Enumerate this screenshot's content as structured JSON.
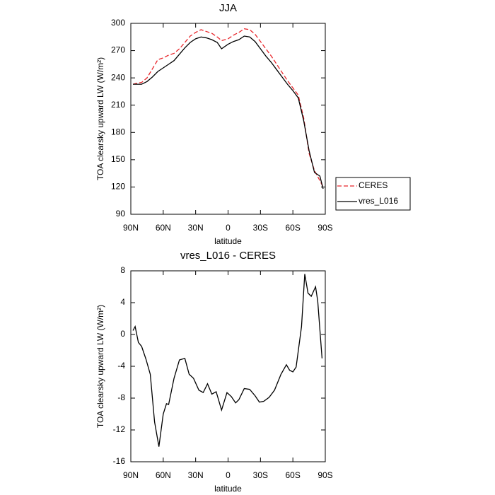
{
  "chart_data": [
    {
      "type": "line",
      "title": "JJA",
      "xlabel": "latitude",
      "ylabel": "TOA clearsky upward LW (W/m²)",
      "x": [
        88,
        85,
        80,
        75,
        70,
        65,
        60,
        55,
        50,
        45,
        40,
        35,
        30,
        25,
        20,
        15,
        10,
        6,
        0,
        -5,
        -10,
        -15,
        -20,
        -25,
        -30,
        -35,
        -40,
        -45,
        -50,
        -55,
        -60,
        -65,
        -70,
        -75,
        -80,
        -85,
        -88
      ],
      "series": [
        {
          "name": "CERES",
          "color": "#e8262b",
          "dashed": true,
          "values": [
            233,
            234,
            235,
            240,
            250,
            260,
            262,
            265,
            267,
            272,
            279,
            286,
            290,
            293,
            291,
            289,
            285,
            281,
            283,
            287,
            290,
            294,
            293,
            288,
            280,
            272,
            264,
            255,
            246,
            237,
            229,
            221,
            196,
            157,
            138,
            127,
            120
          ]
        },
        {
          "name": "vres_L016",
          "color": "#000000",
          "dashed": false,
          "values": [
            233,
            233,
            233,
            236,
            241,
            247,
            251,
            255,
            259,
            266,
            273,
            279,
            283,
            285,
            284,
            282,
            279,
            272,
            277,
            280,
            282,
            286,
            285,
            280,
            272,
            264,
            257,
            249,
            241,
            233,
            226,
            218,
            193,
            160,
            136,
            132,
            118
          ]
        }
      ],
      "xlim": [
        90,
        -90
      ],
      "xticks": [
        {
          "value": 90,
          "label": "90N"
        },
        {
          "value": 60,
          "label": "60N"
        },
        {
          "value": 30,
          "label": "30N"
        },
        0,
        {
          "value": -30,
          "label": "30S"
        },
        {
          "value": -60,
          "label": "60S"
        },
        {
          "value": -90,
          "label": "90S"
        }
      ],
      "ylim": [
        90,
        300
      ],
      "yticks": [
        90,
        120,
        150,
        180,
        210,
        240,
        270,
        300
      ],
      "legend": "right"
    },
    {
      "type": "line",
      "title": "vres_L016 - CERES",
      "xlabel": "latitude",
      "ylabel": "TOA clearsky upward LW (W/m²)",
      "x": [
        88,
        86,
        83,
        80,
        76,
        72,
        68,
        64,
        60,
        57,
        55,
        50,
        45,
        40,
        36,
        32,
        27,
        23,
        19,
        15,
        11,
        6,
        1,
        -3,
        -7,
        -10,
        -15,
        -20,
        -25,
        -29,
        -33,
        -38,
        -43,
        -49,
        -54,
        -57,
        -60,
        -63,
        -68,
        -71,
        -74,
        -77,
        -81,
        -83,
        -87
      ],
      "series": [
        {
          "name": "vres_L016 - CERES",
          "color": "#000000",
          "dashed": false,
          "values": [
            0.5,
            1.0,
            -1.0,
            -1.5,
            -3.1,
            -5.0,
            -11.0,
            -14.1,
            -10.0,
            -8.7,
            -8.8,
            -5.5,
            -3.2,
            -3.0,
            -5.0,
            -5.5,
            -7.0,
            -7.3,
            -6.2,
            -7.5,
            -7.2,
            -9.5,
            -7.3,
            -7.8,
            -8.6,
            -8.2,
            -6.8,
            -6.9,
            -7.7,
            -8.5,
            -8.4,
            -7.9,
            -7.0,
            -5.0,
            -3.8,
            -4.5,
            -4.7,
            -4.1,
            1.0,
            7.6,
            5.2,
            4.8,
            6.0,
            4.2,
            -3.0
          ]
        }
      ],
      "xlim": [
        90,
        -90
      ],
      "xticks": [
        {
          "value": 90,
          "label": "90N"
        },
        {
          "value": 60,
          "label": "60N"
        },
        {
          "value": 30,
          "label": "30N"
        },
        0,
        {
          "value": -30,
          "label": "30S"
        },
        {
          "value": -60,
          "label": "60S"
        },
        {
          "value": -90,
          "label": "90S"
        }
      ],
      "ylim": [
        -16,
        8
      ],
      "yticks": [
        -16,
        -12,
        -8,
        -4,
        0,
        4,
        8
      ]
    }
  ]
}
